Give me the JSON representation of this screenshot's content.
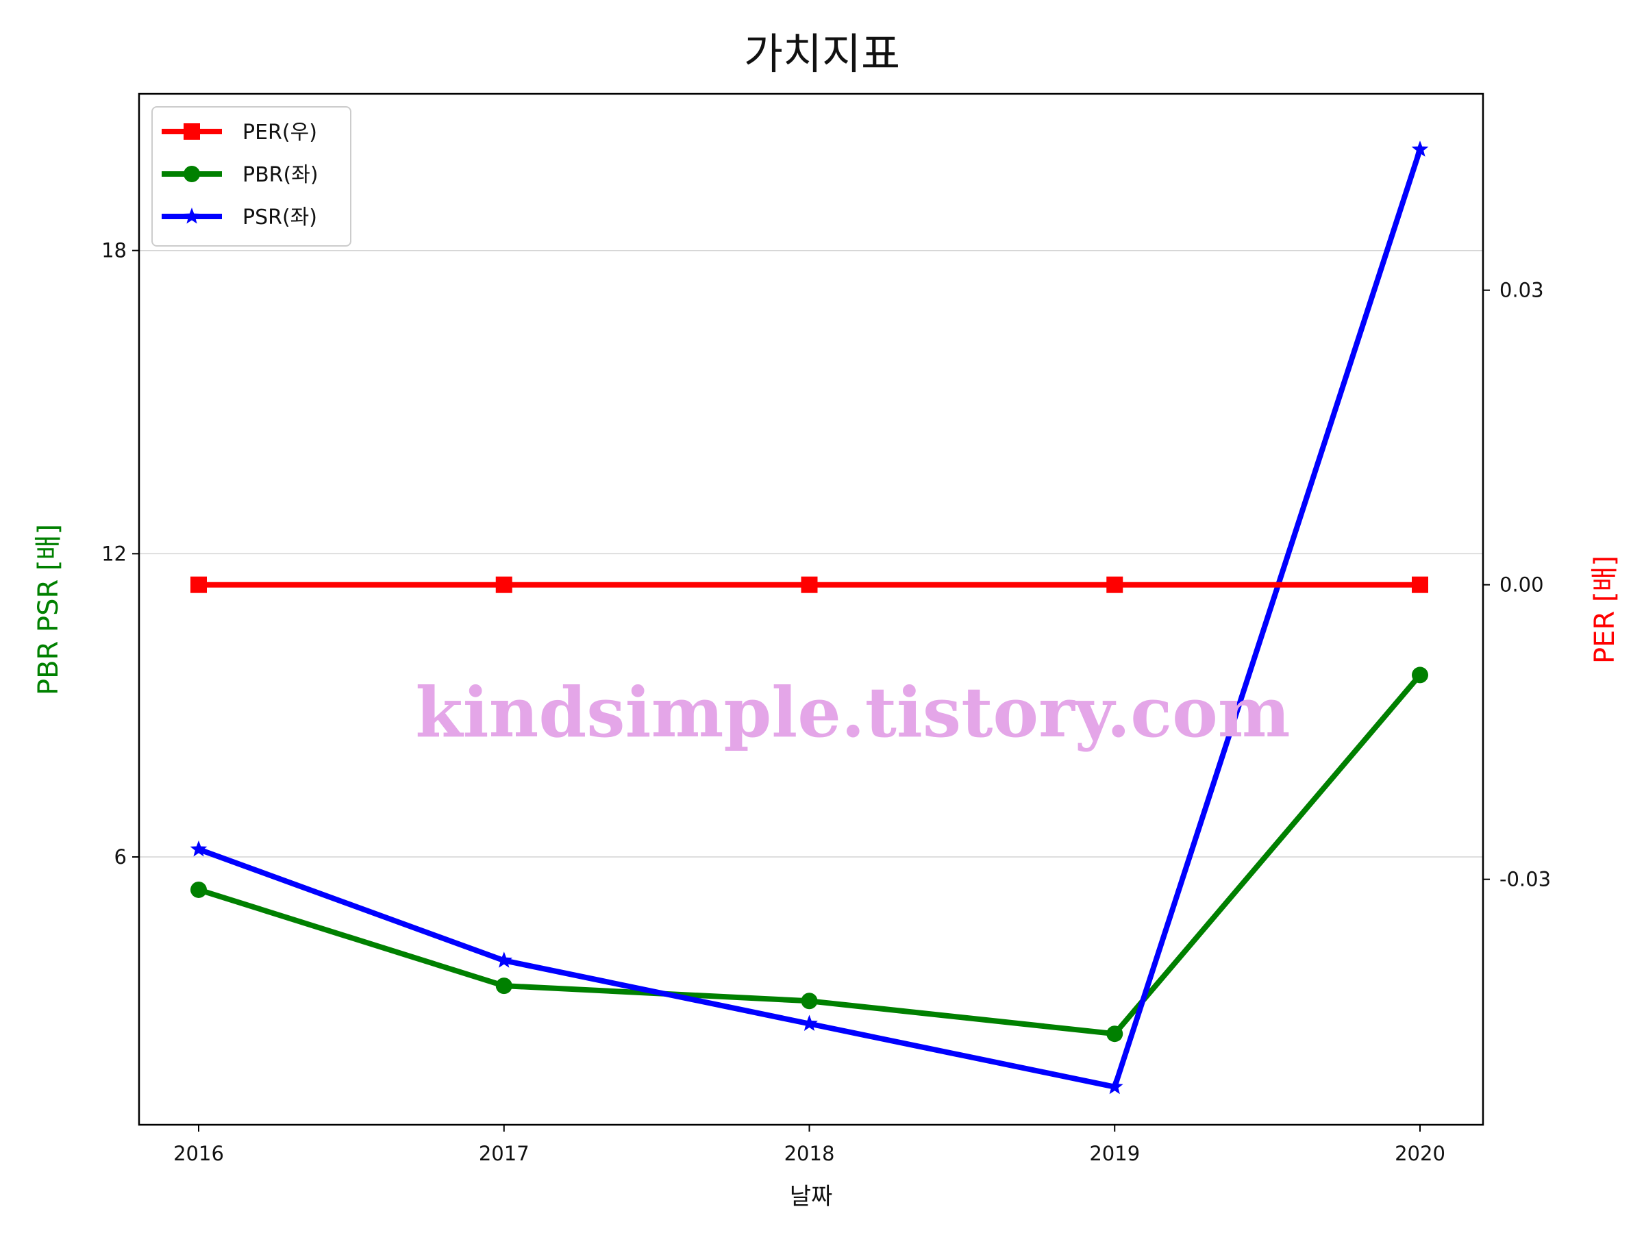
{
  "chart_data": {
    "type": "line",
    "title": "가치지표",
    "xlabel": "날짜",
    "ylabel_left": "PBR PSR [배]",
    "ylabel_right": "PER [배]",
    "categories": [
      "2016",
      "2017",
      "2018",
      "2019",
      "2020"
    ],
    "ylim_left": [
      0.7,
      21.1
    ],
    "ylim_right": [
      -0.055,
      0.05
    ],
    "yticks_left": [
      6,
      12,
      18
    ],
    "yticks_right": [
      -0.03,
      0.0,
      0.03
    ],
    "ytick_labels_left": [
      "6",
      "12",
      "18"
    ],
    "ytick_labels_right": [
      "-0.03",
      "0.00",
      "0.03"
    ],
    "grid": "horizontal, left axis",
    "legend_position": "top-left",
    "series": [
      {
        "name": "PER(우)",
        "axis": "right",
        "color": "#ff0000",
        "marker": "square",
        "values": [
          0.0,
          0.0,
          0.0,
          0.0,
          0.0
        ]
      },
      {
        "name": "PBR(좌)",
        "axis": "left",
        "color": "#008000",
        "marker": "circle",
        "values": [
          5.35,
          3.45,
          3.15,
          2.5,
          9.6
        ]
      },
      {
        "name": "PSR(좌)",
        "axis": "left",
        "color": "#0000ff",
        "marker": "star",
        "values": [
          6.15,
          3.95,
          2.7,
          1.45,
          20.0
        ]
      }
    ],
    "watermark": "kindsimple.tistory.com"
  }
}
